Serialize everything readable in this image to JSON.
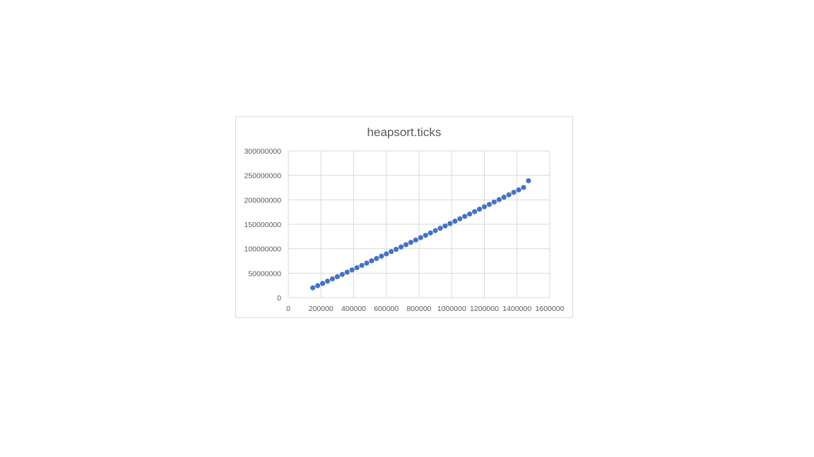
{
  "chart_data": {
    "type": "scatter",
    "title": "heapsort.ticks",
    "xlabel": "",
    "ylabel": "",
    "xlim": [
      0,
      1600000
    ],
    "ylim": [
      0,
      300000000
    ],
    "x_ticks": [
      0,
      200000,
      400000,
      600000,
      800000,
      1000000,
      1200000,
      1400000,
      1600000
    ],
    "y_ticks": [
      0,
      50000000,
      100000000,
      150000000,
      200000000,
      250000000,
      300000000
    ],
    "x_tick_labels": [
      "0",
      "200000",
      "400000",
      "600000",
      "800000",
      "1000000",
      "1200000",
      "1400000",
      "1600000"
    ],
    "y_tick_labels": [
      "0",
      "50000000",
      "100000000",
      "150000000",
      "200000000",
      "250000000",
      "300000000"
    ],
    "grid": true,
    "legend": "none",
    "series": [
      {
        "color": "#4472c4",
        "x": [
          150000,
          180000,
          210000,
          240000,
          270000,
          300000,
          330000,
          360000,
          390000,
          420000,
          450000,
          480000,
          510000,
          540000,
          570000,
          600000,
          630000,
          660000,
          690000,
          720000,
          750000,
          780000,
          810000,
          840000,
          870000,
          900000,
          930000,
          960000,
          990000,
          1020000,
          1050000,
          1080000,
          1110000,
          1140000,
          1170000,
          1200000,
          1230000,
          1260000,
          1290000,
          1320000,
          1350000,
          1380000,
          1410000,
          1440000,
          1470000
        ],
        "y": [
          20000000,
          24500000,
          29000000,
          33600000,
          38200000,
          42800000,
          47400000,
          52000000,
          56600000,
          61200000,
          65900000,
          70600000,
          75300000,
          80000000,
          84700000,
          89400000,
          94100000,
          98800000,
          103500000,
          108200000,
          113000000,
          117800000,
          122600000,
          127400000,
          132200000,
          137000000,
          141800000,
          146600000,
          151400000,
          156300000,
          161200000,
          166100000,
          171000000,
          175900000,
          180800000,
          185700000,
          190600000,
          195500000,
          200400000,
          205300000,
          210300000,
          215300000,
          220300000,
          225300000,
          239000000
        ]
      }
    ]
  }
}
